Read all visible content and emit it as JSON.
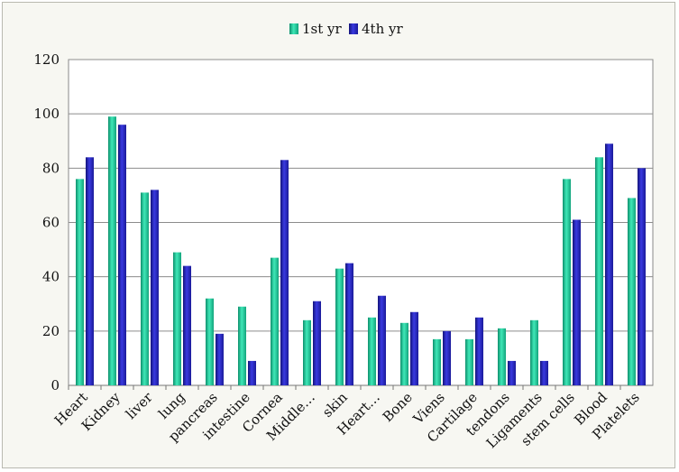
{
  "chart_data": {
    "type": "bar",
    "title": "",
    "xlabel": "",
    "ylabel": "",
    "ylim": [
      0,
      120
    ],
    "yticks": [
      0,
      20,
      40,
      60,
      80,
      100,
      120
    ],
    "grid": true,
    "legend_position": "top",
    "categories": [
      "Heart",
      "Kidney",
      "liver",
      "lung",
      "pancreas",
      "intestine",
      "Cornea",
      "Middle…",
      "skin",
      "Heart…",
      "Bone",
      "Viens",
      "Cartilage",
      "tendons",
      "Ligaments",
      "stem cells",
      "Blood",
      "Platelets"
    ],
    "series": [
      {
        "name": "1st yr",
        "color": "#1fc79a",
        "values": [
          76,
          99,
          71,
          49,
          32,
          29,
          47,
          24,
          43,
          25,
          23,
          17,
          17,
          21,
          24,
          76,
          84,
          69
        ]
      },
      {
        "name": "4th yr",
        "color": "#2222bb",
        "values": [
          84,
          96,
          72,
          44,
          19,
          9,
          83,
          31,
          45,
          33,
          27,
          20,
          25,
          9,
          9,
          61,
          89,
          80
        ]
      }
    ]
  }
}
